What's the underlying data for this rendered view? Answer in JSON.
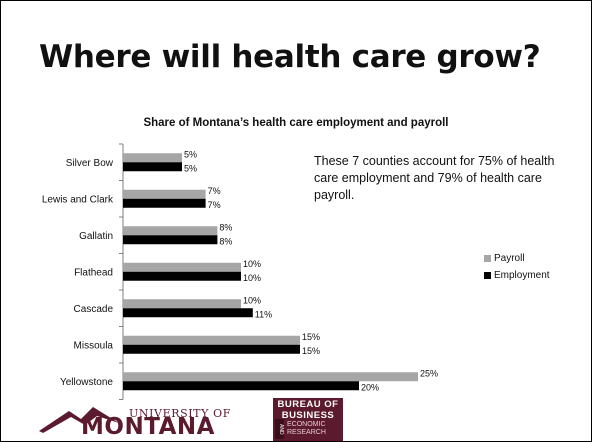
{
  "slide": {
    "title": "Where will health care grow?",
    "note": "These 7 counties account for 75% of health care employment and 79% of health care payroll."
  },
  "chart_data": {
    "type": "bar",
    "orientation": "horizontal",
    "title": "Share of Montana’s health care employment and payroll",
    "categories": [
      "Silver Bow",
      "Lewis and Clark",
      "Gallatin",
      "Flathead",
      "Cascade",
      "Missoula",
      "Yellowstone"
    ],
    "series": [
      {
        "name": "Payroll",
        "color": "#a6a6a6",
        "values": [
          5,
          7,
          8,
          10,
          10,
          15,
          25
        ],
        "labels": [
          "5%",
          "7%",
          "8%",
          "10%",
          "10%",
          "15%",
          "25%"
        ]
      },
      {
        "name": "Employment",
        "color": "#000000",
        "values": [
          5,
          7,
          8,
          10,
          11,
          15,
          20
        ],
        "labels": [
          "5%",
          "7%",
          "8%",
          "10%",
          "11%",
          "15%",
          "20%"
        ]
      }
    ],
    "xlim": [
      0,
      30
    ],
    "grid": false,
    "legend_position": "right"
  },
  "logos": {
    "um_line1": "UNIVERSITY OF",
    "um_line2": "MONTANA",
    "bber_line1": "BUREAU OF",
    "bber_line2": "BUSINESS",
    "bber_and": "AND",
    "bber_line3": "ECONOMIC",
    "bber_line4": "RESEARCH"
  }
}
